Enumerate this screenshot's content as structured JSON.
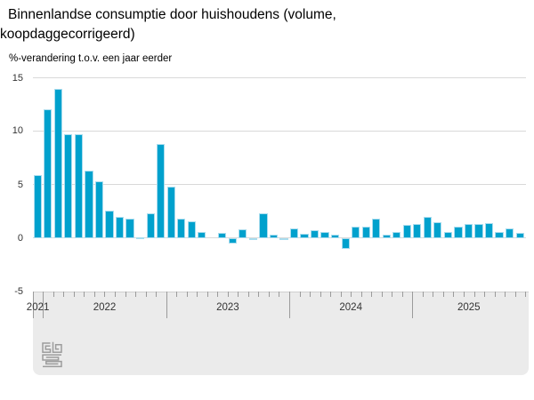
{
  "title_line1": "Binnenlandse consumptie door huishoudens (volume,",
  "title_line2": "koopdaggecorrigeerd)",
  "subtitle": "%-verandering t.o.v. een jaar eerder",
  "chart_data": {
    "type": "bar",
    "title": "Binnenlandse consumptie door huishoudens (volume, koopdaggecorrigeerd)",
    "ylabel": "%-verandering t.o.v. een jaar eerder",
    "xlabel": "",
    "ylim": [
      -5,
      15
    ],
    "yticks": [
      "15",
      "10",
      "5",
      "0",
      "-5"
    ],
    "grid": "horizontal",
    "legend": "none",
    "year_labels": [
      "2021",
      "2022",
      "2023",
      "2024",
      "2025"
    ],
    "x": [
      "2021-12",
      "2022-01",
      "2022-02",
      "2022-03",
      "2022-04",
      "2022-05",
      "2022-06",
      "2022-07",
      "2022-08",
      "2022-09",
      "2022-10",
      "2022-11",
      "2022-12",
      "2023-01",
      "2023-02",
      "2023-03",
      "2023-04",
      "2023-05",
      "2023-06",
      "2023-07",
      "2023-08",
      "2023-09",
      "2023-10",
      "2023-11",
      "2023-12",
      "2024-01",
      "2024-02",
      "2024-03",
      "2024-04",
      "2024-05",
      "2024-06",
      "2024-07",
      "2024-08",
      "2024-09",
      "2024-10",
      "2024-11",
      "2024-12",
      "2025-01",
      "2025-02",
      "2025-03",
      "2025-04",
      "2025-05",
      "2025-06",
      "2025-07",
      "2025-08",
      "2025-09",
      "2025-10",
      "2025-11"
    ],
    "values": [
      5.9,
      12.1,
      14.0,
      9.7,
      9.7,
      6.3,
      5.3,
      2.6,
      2.0,
      1.8,
      0.1,
      2.3,
      8.8,
      4.8,
      1.8,
      1.6,
      0.6,
      0.0,
      0.5,
      -0.5,
      0.8,
      -0.2,
      2.3,
      0.3,
      -0.1,
      0.9,
      0.4,
      0.7,
      0.6,
      0.3,
      -1.0,
      1.1,
      1.1,
      1.8,
      0.3,
      0.6,
      1.2,
      1.3,
      2.0,
      1.5,
      0.6,
      1.1,
      1.3,
      1.3,
      1.4,
      0.6,
      0.9,
      0.5
    ],
    "colors": {
      "bar_fill": "#00a1cd",
      "bar_border": "#a9dcee",
      "gridline": "#d9d9d9",
      "axis_panel": "#ebebeb",
      "tick": "#9b9b9b",
      "text": "#333333"
    }
  },
  "logo_name": "cbs-logo"
}
